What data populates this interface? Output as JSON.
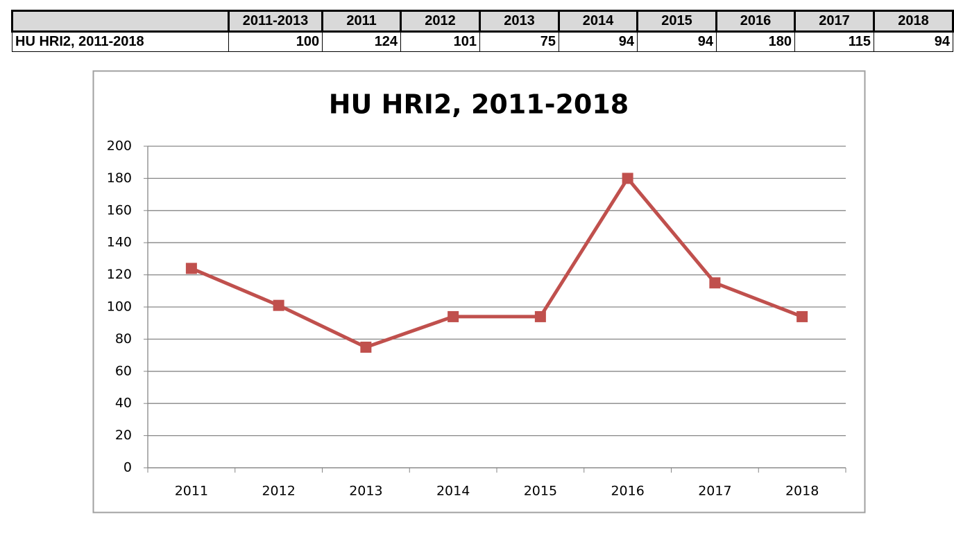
{
  "table": {
    "headers": [
      "2011-2013",
      "2011",
      "2012",
      "2013",
      "2014",
      "2015",
      "2016",
      "2017",
      "2018"
    ],
    "row": {
      "label": "HU HRI2, 2011-2018",
      "cells": [
        100,
        124,
        101,
        75,
        94,
        94,
        180,
        115,
        94
      ]
    }
  },
  "chart_data": {
    "type": "line",
    "title": "HU HRI2, 2011-2018",
    "categories": [
      "2011",
      "2012",
      "2013",
      "2014",
      "2015",
      "2016",
      "2017",
      "2018"
    ],
    "values": [
      124,
      101,
      75,
      94,
      94,
      180,
      115,
      94
    ],
    "color": "#c0504d",
    "ylim": [
      0,
      200
    ],
    "yticks": [
      0,
      20,
      40,
      60,
      80,
      100,
      120,
      140,
      160,
      180,
      200
    ],
    "grid": true
  }
}
